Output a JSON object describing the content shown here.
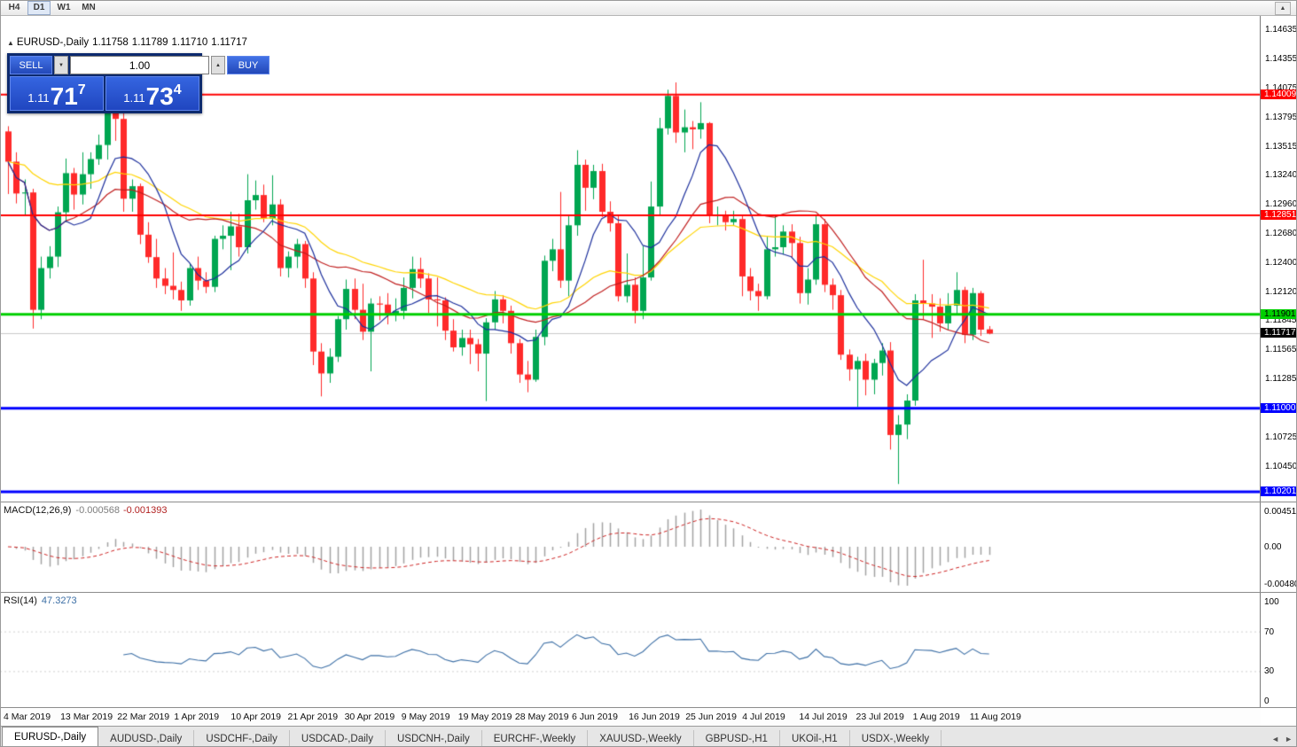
{
  "toolbar": {
    "timeframes": [
      "H4",
      "D1",
      "W1",
      "MN"
    ],
    "active": "D1",
    "scroll_up_icon": "▲"
  },
  "chart_title": {
    "collapse_icon": "▲",
    "symbol": "EURUSD-,Daily",
    "open": "1.11758",
    "high": "1.11789",
    "low": "1.11710",
    "close": "1.11717"
  },
  "one_click": {
    "sell_label": "SELL",
    "buy_label": "BUY",
    "volume_value": "1.00",
    "spinner_down_icon": "▼",
    "spinner_up_icon": "▲",
    "sell_price": {
      "prefix": "1.11",
      "big": "71",
      "sup": "7"
    },
    "buy_price": {
      "prefix": "1.11",
      "big": "73",
      "sup": "4"
    },
    "panel_bg": "#0d2a6e",
    "button_color": "#2c58d8"
  },
  "price_axis": {
    "ticks": [
      "1.14635",
      "1.14355",
      "1.14075",
      "1.13795",
      "1.13515",
      "1.13240",
      "1.12960",
      "1.12680",
      "1.12400",
      "1.12120",
      "1.11845",
      "1.11565",
      "1.11285",
      "1.10725",
      "1.10450"
    ],
    "boxes": [
      {
        "text": "1.14009",
        "bg": "#ff0000",
        "fg": "#ffffff"
      },
      {
        "text": "1.12851",
        "bg": "#ff0000",
        "fg": "#ffffff"
      },
      {
        "text": "1.11901",
        "bg": "#00cf00",
        "fg": "#000000"
      },
      {
        "text": "1.11717",
        "bg": "#000000",
        "fg": "#ffffff"
      },
      {
        "text": "1.11000",
        "bg": "#0000ff",
        "fg": "#ffffff"
      },
      {
        "text": "1.10201",
        "bg": "#0000ff",
        "fg": "#ffffff"
      }
    ]
  },
  "macd": {
    "name": "MACD(12,26,9)",
    "value_main": "-0.000568",
    "value_signal": "-0.001393",
    "scale_labels": [
      "0.004517",
      "0.00",
      "-0.004806"
    ],
    "fast": 12,
    "slow": 26,
    "signal": 9,
    "histogram_color": "#a3a3a3",
    "signal_color": "#cc2222"
  },
  "rsi": {
    "name": "RSI(14)",
    "value": "47.3273",
    "period": 14,
    "scale_labels": [
      "100",
      "70",
      "30",
      "0"
    ],
    "levels": [
      70,
      30
    ],
    "line_color": "#3b6ea5"
  },
  "date_axis": {
    "labels": [
      "4 Mar 2019",
      "13 Mar 2019",
      "22 Mar 2019",
      "1 Apr 2019",
      "10 Apr 2019",
      "21 Apr 2019",
      "30 Apr 2019",
      "9 May 2019",
      "19 May 2019",
      "28 May 2019",
      "6 Jun 2019",
      "16 Jun 2019",
      "25 Jun 2019",
      "4 Jul 2019",
      "14 Jul 2019",
      "23 Jul 2019",
      "1 Aug 2019",
      "11 Aug 2019"
    ]
  },
  "tabs": {
    "active_index": 0,
    "items": [
      "EURUSD-,Daily",
      "AUDUSD-,Daily",
      "USDCHF-,Daily",
      "USDCAD-,Daily",
      "USDCNH-,Daily",
      "EURCHF-,Weekly",
      "XAUUSD-,Weekly",
      "GBPUSD-,H1",
      "UKOil-,H1",
      "USDX-,Weekly"
    ],
    "scroll_left_icon": "◄",
    "scroll_right_icon": "►"
  },
  "chart_data": {
    "type": "candlestick",
    "symbol": "EURUSD-,Daily",
    "up_color": "#00a651",
    "down_color": "#ff2a2a",
    "y_axis": {
      "min": 1.10107,
      "max": 1.14762
    },
    "current_price": {
      "value": 1.11717,
      "line_color": "#c8c8c8"
    },
    "levels": [
      {
        "price": 1.14009,
        "color": "#ff0000",
        "width": 2
      },
      {
        "price": 1.12851,
        "color": "#ff0000",
        "width": 2
      },
      {
        "price": 1.11901,
        "color": "#00cf00",
        "width": 3
      },
      {
        "price": 1.11,
        "color": "#0000ff",
        "width": 3
      },
      {
        "price": 1.10201,
        "color": "#0000ff",
        "width": 3
      }
    ],
    "moving_averages": [
      {
        "period": 34,
        "type": "ema",
        "color": "#ffd400"
      },
      {
        "period": 20,
        "type": "sma",
        "color": "#c01f1f"
      },
      {
        "period": 8,
        "type": "sma",
        "color": "#1c2f9c"
      }
    ],
    "candles": [
      [
        1.13655,
        1.13705,
        1.13055,
        1.13365
      ],
      [
        1.13365,
        1.13455,
        1.12965,
        1.1306
      ],
      [
        1.1306,
        1.13195,
        1.12855,
        1.1307
      ],
      [
        1.1307,
        1.13105,
        1.11765,
        1.11945
      ],
      [
        1.11945,
        1.12455,
        1.11855,
        1.12345
      ],
      [
        1.12345,
        1.12555,
        1.12245,
        1.12455
      ],
      [
        1.12455,
        1.12935,
        1.12355,
        1.1288
      ],
      [
        1.1288,
        1.13395,
        1.12785,
        1.13255
      ],
      [
        1.13255,
        1.13305,
        1.12905,
        1.1305
      ],
      [
        1.1305,
        1.13455,
        1.12955,
        1.13245
      ],
      [
        1.13245,
        1.13455,
        1.13105,
        1.1339
      ],
      [
        1.1339,
        1.13625,
        1.13335,
        1.13525
      ],
      [
        1.13525,
        1.14045,
        1.13385,
        1.14035
      ],
      [
        1.14035,
        1.14055,
        1.13565,
        1.13775
      ],
      [
        1.13775,
        1.13835,
        1.12885,
        1.1301
      ],
      [
        1.1301,
        1.13195,
        1.12885,
        1.1313
      ],
      [
        1.1313,
        1.13155,
        1.12575,
        1.12665
      ],
      [
        1.12665,
        1.12785,
        1.12395,
        1.1245
      ],
      [
        1.1245,
        1.12625,
        1.12155,
        1.12245
      ],
      [
        1.12245,
        1.12345,
        1.12095,
        1.12175
      ],
      [
        1.12175,
        1.12495,
        1.12045,
        1.12135
      ],
      [
        1.12135,
        1.12215,
        1.11935,
        1.12035
      ],
      [
        1.12035,
        1.12385,
        1.11985,
        1.12345
      ],
      [
        1.12345,
        1.12455,
        1.12135,
        1.12225
      ],
      [
        1.12225,
        1.12305,
        1.12105,
        1.12165
      ],
      [
        1.12165,
        1.12655,
        1.12115,
        1.12625
      ],
      [
        1.12625,
        1.12755,
        1.12525,
        1.12655
      ],
      [
        1.12655,
        1.12885,
        1.12325,
        1.12745
      ],
      [
        1.12745,
        1.12865,
        1.12455,
        1.12545
      ],
      [
        1.12545,
        1.13245,
        1.12485,
        1.12995
      ],
      [
        1.12995,
        1.13185,
        1.12905,
        1.13045
      ],
      [
        1.13045,
        1.13145,
        1.12785,
        1.1282
      ],
      [
        1.1282,
        1.13235,
        1.12755,
        1.12955
      ],
      [
        1.12955,
        1.13005,
        1.12265,
        1.12345
      ],
      [
        1.12345,
        1.12505,
        1.12255,
        1.12455
      ],
      [
        1.12455,
        1.12625,
        1.12345,
        1.12575
      ],
      [
        1.12575,
        1.12605,
        1.12155,
        1.12245
      ],
      [
        1.12245,
        1.12305,
        1.11415,
        1.11545
      ],
      [
        1.11545,
        1.11625,
        1.11115,
        1.11335
      ],
      [
        1.11335,
        1.11575,
        1.11245,
        1.11495
      ],
      [
        1.11495,
        1.11885,
        1.11445,
        1.11855
      ],
      [
        1.11855,
        1.12235,
        1.11755,
        1.12145
      ],
      [
        1.12145,
        1.12245,
        1.11855,
        1.11945
      ],
      [
        1.11945,
        1.12195,
        1.11655,
        1.11735
      ],
      [
        1.11735,
        1.12055,
        1.11355,
        1.12005
      ],
      [
        1.12005,
        1.12075,
        1.11845,
        1.11995
      ],
      [
        1.11995,
        1.12105,
        1.11805,
        1.11905
      ],
      [
        1.11905,
        1.12055,
        1.11835,
        1.11935
      ],
      [
        1.11935,
        1.12255,
        1.11855,
        1.12155
      ],
      [
        1.12155,
        1.12455,
        1.12055,
        1.12335
      ],
      [
        1.12335,
        1.12445,
        1.12155,
        1.12245
      ],
      [
        1.12245,
        1.12295,
        1.11915,
        1.12045
      ],
      [
        1.12045,
        1.12255,
        1.11785,
        1.12035
      ],
      [
        1.12035,
        1.12065,
        1.11655,
        1.11745
      ],
      [
        1.11745,
        1.11855,
        1.11545,
        1.11585
      ],
      [
        1.11585,
        1.11755,
        1.11505,
        1.11675
      ],
      [
        1.11675,
        1.11755,
        1.11425,
        1.11615
      ],
      [
        1.11615,
        1.11665,
        1.11355,
        1.11525
      ],
      [
        1.11525,
        1.11865,
        1.1107,
        1.11825
      ],
      [
        1.11825,
        1.12125,
        1.11755,
        1.12045
      ],
      [
        1.12045,
        1.12085,
        1.11815,
        1.11935
      ],
      [
        1.11935,
        1.11985,
        1.11525,
        1.11625
      ],
      [
        1.11625,
        1.11665,
        1.11245,
        1.11325
      ],
      [
        1.11325,
        1.11455,
        1.11155,
        1.11275
      ],
      [
        1.11275,
        1.11755,
        1.11255,
        1.11685
      ],
      [
        1.11685,
        1.12465,
        1.11605,
        1.12415
      ],
      [
        1.12415,
        1.12625,
        1.12315,
        1.12525
      ],
      [
        1.12525,
        1.13075,
        1.12155,
        1.12225
      ],
      [
        1.12225,
        1.12855,
        1.12075,
        1.12755
      ],
      [
        1.12755,
        1.13475,
        1.12655,
        1.13335
      ],
      [
        1.13335,
        1.13385,
        1.12895,
        1.13115
      ],
      [
        1.13115,
        1.13335,
        1.13005,
        1.13275
      ],
      [
        1.13275,
        1.13345,
        1.12835,
        1.12885
      ],
      [
        1.12885,
        1.12985,
        1.12695,
        1.12775
      ],
      [
        1.12775,
        1.12855,
        1.12025,
        1.12075
      ],
      [
        1.12075,
        1.12485,
        1.12015,
        1.12185
      ],
      [
        1.12185,
        1.12255,
        1.11815,
        1.11935
      ],
      [
        1.11935,
        1.12555,
        1.11855,
        1.12255
      ],
      [
        1.12255,
        1.13175,
        1.12225,
        1.12935
      ],
      [
        1.12935,
        1.13785,
        1.12855,
        1.13685
      ],
      [
        1.13685,
        1.14055,
        1.13625,
        1.13995
      ],
      [
        1.13995,
        1.14125,
        1.13545,
        1.13645
      ],
      [
        1.13645,
        1.13865,
        1.13455,
        1.13695
      ],
      [
        1.13695,
        1.13755,
        1.13485,
        1.13675
      ],
      [
        1.13675,
        1.13935,
        1.13585,
        1.13735
      ],
      [
        1.13735,
        1.13745,
        1.12775,
        1.12845
      ],
      [
        1.12845,
        1.12935,
        1.12755,
        1.12855
      ],
      [
        1.12855,
        1.12895,
        1.12705,
        1.12785
      ],
      [
        1.12785,
        1.12895,
        1.12755,
        1.12815
      ],
      [
        1.12815,
        1.12855,
        1.12075,
        1.12265
      ],
      [
        1.12265,
        1.12345,
        1.12035,
        1.12125
      ],
      [
        1.12125,
        1.12195,
        1.11935,
        1.12075
      ],
      [
        1.12075,
        1.12645,
        1.12045,
        1.12525
      ],
      [
        1.12525,
        1.12855,
        1.12455,
        1.12545
      ],
      [
        1.12545,
        1.12755,
        1.12475,
        1.12695
      ],
      [
        1.12695,
        1.12765,
        1.12445,
        1.12585
      ],
      [
        1.12585,
        1.12645,
        1.12005,
        1.12105
      ],
      [
        1.12105,
        1.12345,
        1.11995,
        1.12235
      ],
      [
        1.12235,
        1.12855,
        1.12185,
        1.12765
      ],
      [
        1.12765,
        1.12815,
        1.12115,
        1.12185
      ],
      [
        1.12185,
        1.12245,
        1.11945,
        1.12085
      ],
      [
        1.12085,
        1.12135,
        1.11465,
        1.11515
      ],
      [
        1.11515,
        1.11565,
        1.11265,
        1.11375
      ],
      [
        1.11375,
        1.11495,
        1.11015,
        1.11455
      ],
      [
        1.11455,
        1.11525,
        1.11125,
        1.11275
      ],
      [
        1.11275,
        1.11475,
        1.11135,
        1.11435
      ],
      [
        1.11435,
        1.11625,
        1.11315,
        1.11555
      ],
      [
        1.11555,
        1.11635,
        1.10605,
        1.10745
      ],
      [
        1.10745,
        1.10935,
        1.10275,
        1.10845
      ],
      [
        1.10845,
        1.11135,
        1.10705,
        1.11075
      ],
      [
        1.11075,
        1.12095,
        1.11025,
        1.12035
      ],
      [
        1.12035,
        1.12425,
        1.11855,
        1.12005
      ],
      [
        1.12005,
        1.12095,
        1.11675,
        1.11975
      ],
      [
        1.11975,
        1.12055,
        1.11735,
        1.11815
      ],
      [
        1.11815,
        1.12105,
        1.11755,
        1.11985
      ],
      [
        1.11985,
        1.12305,
        1.11905,
        1.12135
      ],
      [
        1.12135,
        1.12165,
        1.11625,
        1.11705
      ],
      [
        1.11705,
        1.12155,
        1.11655,
        1.12105
      ],
      [
        1.12105,
        1.12125,
        1.11695,
        1.11755
      ],
      [
        1.11758,
        1.11789,
        1.1171,
        1.11717
      ]
    ]
  }
}
